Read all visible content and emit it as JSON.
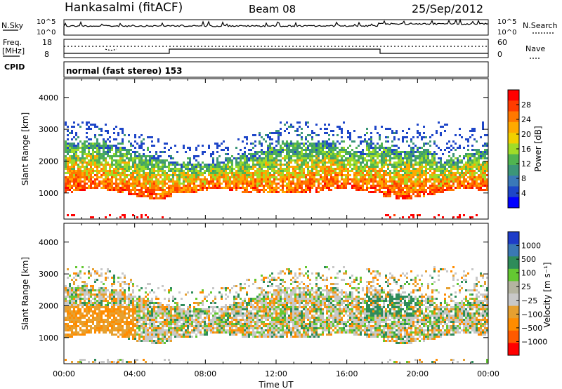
{
  "header": {
    "station": "Hankasalmi (fitACF)",
    "beam": "Beam 08",
    "date": "25/Sep/2012"
  },
  "top_panels": {
    "nsky_label": "N.Sky",
    "nsky_ticks": [
      "10^5",
      "10^0"
    ],
    "nsearch_label": "N.Search",
    "nsearch_ticks": [
      "10^5",
      "10^0"
    ],
    "freq_label_1": "Freq.",
    "freq_label_2": "[MHz]",
    "freq_ticks": [
      "18",
      "8"
    ],
    "nave_label": "Nave",
    "nave_ticks": [
      "60",
      "0"
    ],
    "cpid_label": "CPID",
    "cpid_text": "normal (fast stereo) 153"
  },
  "chart_data": [
    {
      "type": "heatmap",
      "name": "power",
      "title": "",
      "ylabel": "Slant Range [km]",
      "xlabel": "",
      "x_ticks": [
        "00:00",
        "04:00",
        "08:00",
        "12:00",
        "16:00",
        "20:00",
        "00:00"
      ],
      "y_ticks": [
        "4000",
        "3000",
        "2000",
        "1000"
      ],
      "ylim": [
        180,
        4590
      ],
      "xlim_hours": [
        0,
        24
      ],
      "colorbar_label": "Power [dB]",
      "colorbar_ticks": [
        "28",
        "24",
        "20",
        "16",
        "12",
        "8",
        "4"
      ],
      "colorbar_colors": [
        "#ff0000",
        "#ff3c00",
        "#ff7800",
        "#ffaa00",
        "#f0d000",
        "#a0dc28",
        "#50b450",
        "#3c9678",
        "#3a78b8",
        "#1e46c8",
        "#0000ff"
      ]
    },
    {
      "type": "heatmap",
      "name": "velocity",
      "title": "",
      "ylabel": "Slant Range [km]",
      "xlabel": "Time UT",
      "x_ticks": [
        "00:00",
        "04:00",
        "08:00",
        "12:00",
        "16:00",
        "20:00",
        "00:00"
      ],
      "y_ticks": [
        "4000",
        "3000",
        "2000",
        "1000"
      ],
      "ylim": [
        180,
        4590
      ],
      "xlim_hours": [
        0,
        24
      ],
      "colorbar_label": "Velocity [m s⁻¹]",
      "colorbar_ticks": [
        "1000",
        "500",
        "100",
        "25",
        "−25",
        "−100",
        "−500",
        "−1000"
      ],
      "colorbar_colors": [
        "#1e3cc8",
        "#3a78b4",
        "#2e8c5a",
        "#64c832",
        "#b4b4a0",
        "#c8c8c8",
        "#e6a030",
        "#ff8c00",
        "#ff5a00",
        "#ff0000"
      ]
    }
  ]
}
